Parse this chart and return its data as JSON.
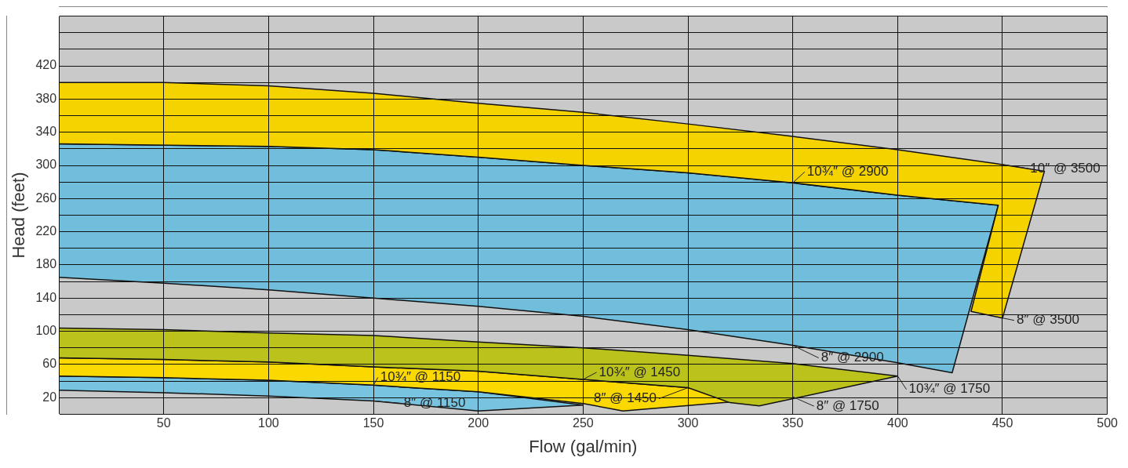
{
  "chart_data": {
    "type": "area",
    "xlabel": "Flow (gal/min)",
    "ylabel": "Head (feet)",
    "xlim": [
      0,
      500
    ],
    "ylim": [
      0,
      480
    ],
    "xticks": [
      {
        "value": 0,
        "label": null
      },
      50,
      100,
      150,
      200,
      250,
      300,
      350,
      400,
      450,
      500
    ],
    "yticks": [
      {
        "value": 0,
        "label": null
      },
      20,
      {
        "value": 40,
        "label": null
      },
      60,
      {
        "value": 80,
        "label": null
      },
      100,
      {
        "value": 120,
        "label": null
      },
      140,
      {
        "value": 160,
        "label": null
      },
      180,
      {
        "value": 200,
        "label": null
      },
      220,
      {
        "value": 240,
        "label": null
      },
      260,
      {
        "value": 280,
        "label": null
      },
      300,
      {
        "value": 320,
        "label": null
      },
      340,
      {
        "value": 360,
        "label": null
      },
      380,
      {
        "value": 400,
        "label": null
      },
      420,
      {
        "value": 440,
        "label": null
      },
      {
        "value": 460,
        "label": null
      },
      {
        "value": 480,
        "label": null
      }
    ],
    "grid": true,
    "series": [
      {
        "color": "#f5d300",
        "x": [
          0,
          50,
          100,
          150,
          200,
          250,
          300,
          350,
          400,
          450,
          470,
          450,
          435,
          448,
          400,
          350,
          300,
          250,
          200,
          150,
          100,
          0
        ],
        "values": [
          400,
          400,
          396,
          387,
          375,
          364,
          350,
          335,
          319,
          301,
          293,
          116,
          124,
          252,
          264,
          279,
          291,
          300,
          310,
          319,
          323,
          326
        ]
      },
      {
        "color": "#70bedb",
        "x": [
          0,
          100,
          150,
          200,
          250,
          300,
          350,
          400,
          448,
          426,
          400,
          350,
          300,
          250,
          200,
          150,
          100,
          50,
          0
        ],
        "values": [
          326,
          323,
          319,
          310,
          300,
          291,
          279,
          264,
          252,
          50,
          62,
          83,
          102,
          118,
          130,
          140,
          150,
          158,
          165
        ]
      },
      {
        "color": "#bcc21c",
        "x": [
          0,
          50,
          100,
          150,
          200,
          250,
          300,
          350,
          400,
          334,
          320,
          300,
          250,
          200,
          150,
          100,
          50,
          0
        ],
        "values": [
          104,
          102,
          98,
          95,
          87,
          80,
          71,
          61,
          46,
          10,
          14,
          32,
          42,
          52,
          57,
          63,
          66,
          68
        ]
      },
      {
        "color": "#fbd800",
        "x": [
          0,
          50,
          100,
          150,
          200,
          250,
          300,
          350,
          269,
          250,
          200,
          150,
          100,
          50,
          0
        ],
        "values": [
          68,
          66,
          63,
          57,
          52,
          42,
          32,
          21,
          4,
          13,
          27,
          35,
          41,
          44,
          46
        ]
      },
      {
        "color": "#78c4e0",
        "x": [
          0,
          50,
          100,
          150,
          200,
          250,
          200,
          150,
          100,
          50,
          0
        ],
        "values": [
          46,
          44,
          41,
          35,
          27,
          11,
          4,
          16,
          22,
          26,
          29
        ]
      }
    ],
    "annotations": [
      {
        "text": "10″ @ 3500",
        "x": 450,
        "y": 301
      },
      {
        "text": "10¾″ @ 2900",
        "x": 350,
        "y": 279
      },
      {
        "text": "8″ @ 3500",
        "x": 450,
        "y": 116
      },
      {
        "text": "8″ @ 2900",
        "x": 350,
        "y": 83
      },
      {
        "text": "10¾″ @ 1750",
        "x": 400,
        "y": 46
      },
      {
        "text": "8″ @ 1750",
        "x": 350,
        "y": 21
      },
      {
        "text": "10¾″ @ 1450",
        "x": 250,
        "y": 42
      },
      {
        "text": "8″ @ 1450",
        "x": 300,
        "y": 32
      },
      {
        "text": "10¾″ @ 1150",
        "x": 150,
        "y": 35
      },
      {
        "text": "8″ @ 1150",
        "x": 150,
        "y": 16
      }
    ]
  }
}
